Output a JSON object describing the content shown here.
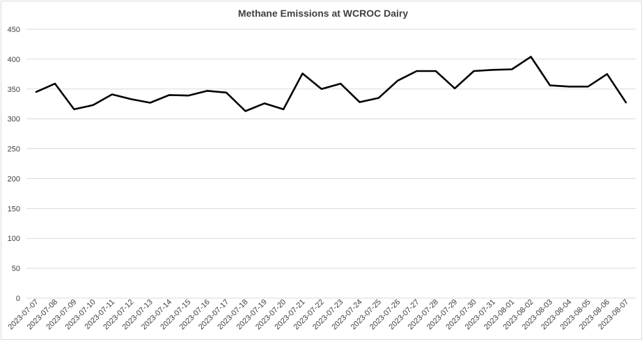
{
  "chart_data": {
    "type": "line",
    "title": "Methane Emissions at WCROC Dairy",
    "xlabel": "",
    "ylabel": "",
    "ylim": [
      0,
      450
    ],
    "yticks": [
      0,
      50,
      100,
      150,
      200,
      250,
      300,
      350,
      400,
      450
    ],
    "grid": true,
    "legend": "none",
    "line_color": "#000000",
    "grid_color": "#d9d9d9",
    "categories": [
      "2023-07-07",
      "2023-07-08",
      "2023-07-09",
      "2023-07-10",
      "2023-07-11",
      "2023-07-12",
      "2023-07-13",
      "2023-07-14",
      "2023-07-15",
      "2023-07-16",
      "2023-07-17",
      "2023-07-18",
      "2023-07-19",
      "2023-07-20",
      "2023-07-21",
      "2023-07-22",
      "2023-07-23",
      "2023-07-24",
      "2023-07-25",
      "2023-07-26",
      "2023-07-27",
      "2023-07-28",
      "2023-07-29",
      "2023-07-30",
      "2023-07-31",
      "2023-08-01",
      "2023-08-02",
      "2023-08-03",
      "2023-08-04",
      "2023-08-05",
      "2023-08-06",
      "2023-08-07"
    ],
    "series": [
      {
        "values": [
          345,
          359,
          316,
          323,
          341,
          333,
          327,
          340,
          339,
          347,
          344,
          313,
          326,
          316,
          376,
          350,
          359,
          328,
          335,
          364,
          380,
          380,
          351,
          380,
          382,
          383,
          404,
          356,
          354,
          354,
          375,
          327
        ]
      }
    ]
  }
}
